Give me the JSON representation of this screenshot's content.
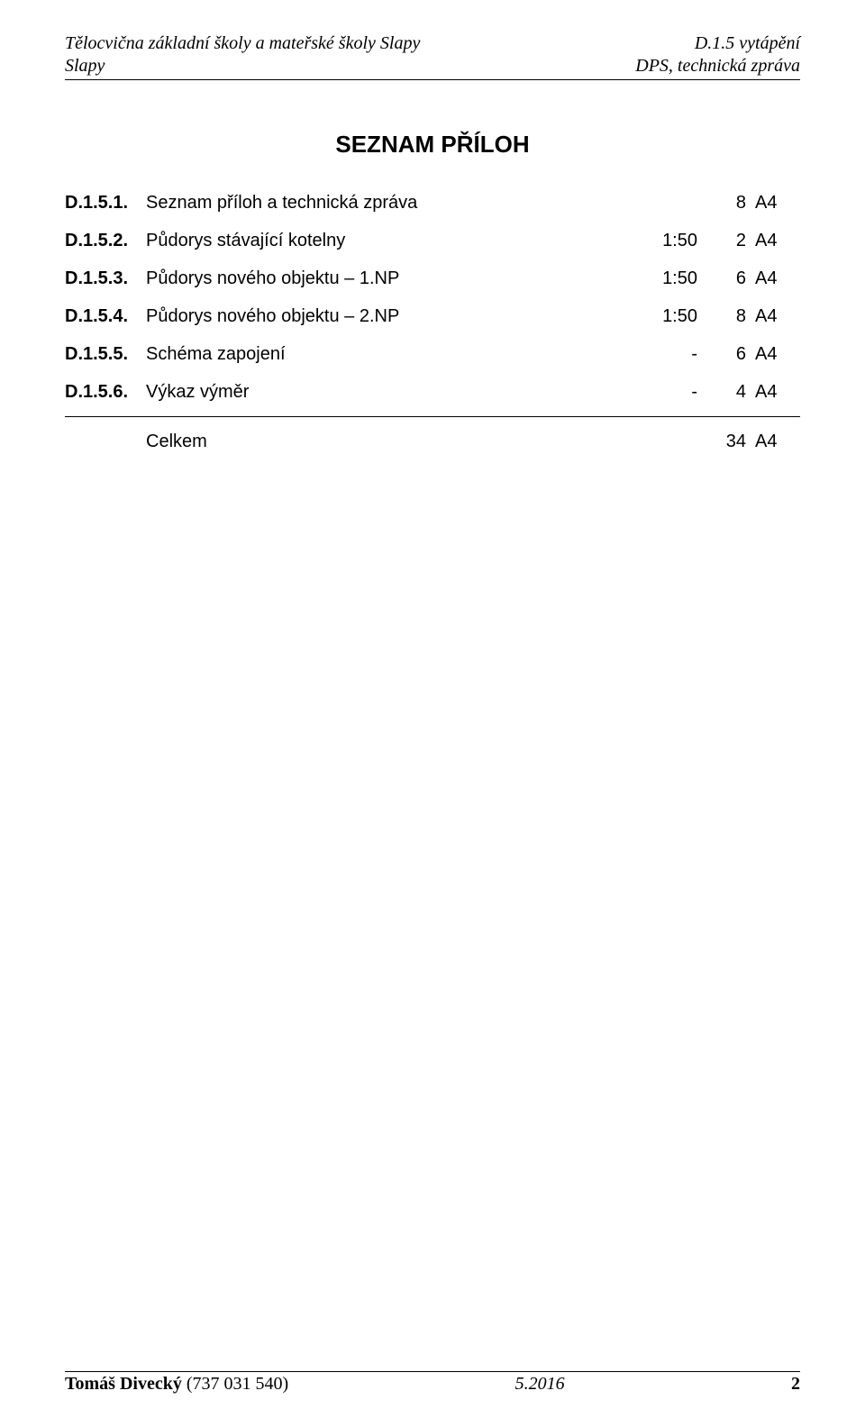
{
  "header": {
    "left_line1": "Tělocvična základní školy a mateřské školy Slapy",
    "left_line2": "Slapy",
    "right_line1": "D.1.5 vytápění",
    "right_line2": "DPS, technická zpráva"
  },
  "title": "SEZNAM PŘÍLOH",
  "table": {
    "columns": [
      "code",
      "description",
      "scale",
      "count",
      "format"
    ],
    "rows": [
      {
        "code": "D.1.5.1.",
        "description": "Seznam příloh a technická zpráva",
        "scale": "",
        "count": "8",
        "format": "A4"
      },
      {
        "code": "D.1.5.2.",
        "description": "Půdorys stávající kotelny",
        "scale": "1:50",
        "count": "2",
        "format": "A4"
      },
      {
        "code": "D.1.5.3.",
        "description": "Půdorys nového objektu – 1.NP",
        "scale": "1:50",
        "count": "6",
        "format": "A4"
      },
      {
        "code": "D.1.5.4.",
        "description": "Půdorys nového objektu – 2.NP",
        "scale": "1:50",
        "count": "8",
        "format": "A4"
      },
      {
        "code": "D.1.5.5.",
        "description": "Schéma zapojení",
        "scale": "-",
        "count": "6",
        "format": "A4"
      },
      {
        "code": "D.1.5.6.",
        "description": "Výkaz výměr",
        "scale": "-",
        "count": "4",
        "format": "A4"
      }
    ],
    "total": {
      "label": "Celkem",
      "count": "34",
      "format": "A4"
    }
  },
  "footer": {
    "author_name": "Tomáš Divecký",
    "author_phone": "(737 031 540)",
    "date": "5.2016",
    "page_number": "2"
  }
}
